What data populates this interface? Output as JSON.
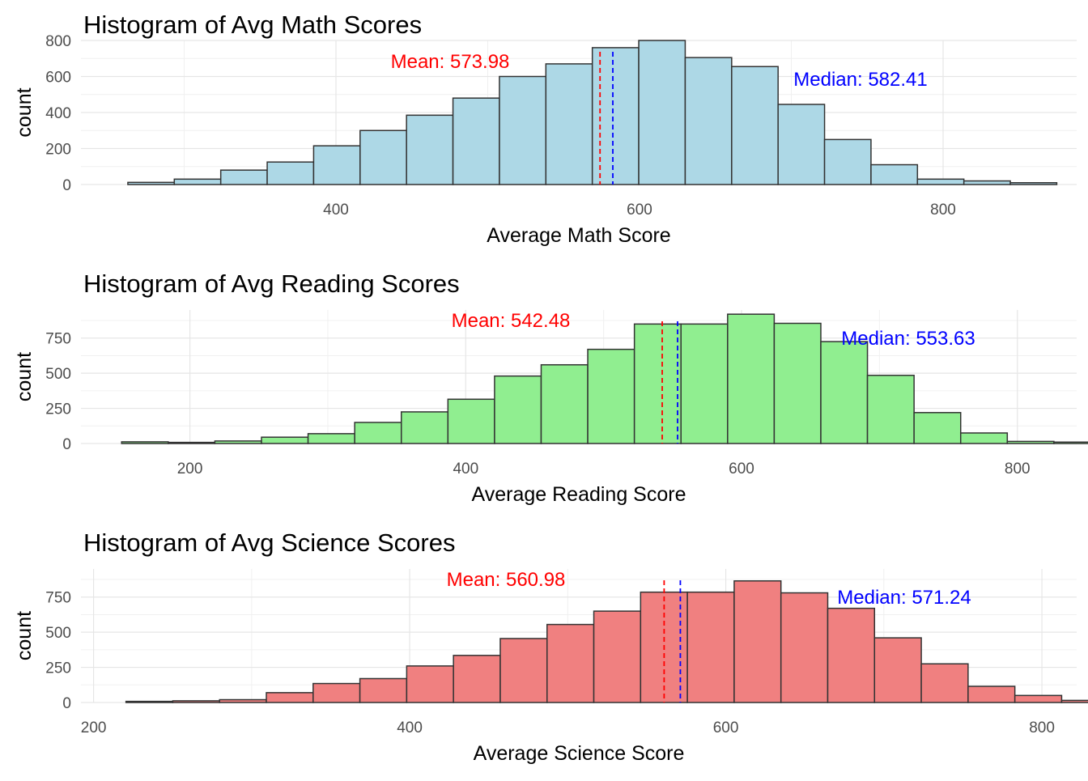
{
  "chart_data": [
    {
      "type": "bar",
      "title": "Histogram of Avg Math Scores",
      "xlabel": "Average Math Score",
      "ylabel": "count",
      "xlim": [
        232,
        888
      ],
      "ylim": [
        0,
        800
      ],
      "x_ticks": [
        400,
        600,
        800
      ],
      "y_ticks": [
        0,
        200,
        400,
        600,
        800
      ],
      "grid": true,
      "bin_start": 262.9,
      "bin_width": 30.6,
      "values": [
        12,
        30,
        80,
        125,
        215,
        300,
        385,
        480,
        600,
        670,
        760,
        800,
        705,
        655,
        445,
        250,
        110,
        30,
        20,
        10
      ],
      "fill_color": "#add8e6",
      "edge_color": "#333333",
      "mean": {
        "value": 573.98,
        "label": "Mean: 573.98",
        "color": "#ff0000"
      },
      "median": {
        "value": 582.41,
        "label": "Median: 582.41",
        "color": "#0000ff"
      }
    },
    {
      "type": "bar",
      "title": "Histogram of Avg Reading Scores",
      "xlabel": "Average Reading Score",
      "ylabel": "count",
      "xlim": [
        121,
        843
      ],
      "ylim": [
        0,
        950
      ],
      "x_ticks": [
        200,
        400,
        600,
        800
      ],
      "y_ticks": [
        0,
        250,
        500,
        750
      ],
      "grid": true,
      "bin_start": 150.5,
      "bin_width": 33.8,
      "values": [
        12,
        8,
        18,
        45,
        70,
        150,
        225,
        315,
        480,
        560,
        670,
        850,
        850,
        920,
        855,
        725,
        485,
        220,
        75,
        15,
        10
      ],
      "fill_color": "#90ee90",
      "edge_color": "#333333",
      "mean": {
        "value": 542.48,
        "label": "Mean: 542.48",
        "color": "#ff0000"
      },
      "median": {
        "value": 553.63,
        "label": "Median: 553.63",
        "color": "#0000ff"
      }
    },
    {
      "type": "bar",
      "title": "Histogram of Avg Science Scores",
      "xlabel": "Average Science Score",
      "ylabel": "count",
      "xlim": [
        192,
        822
      ],
      "ylim": [
        0,
        950
      ],
      "x_ticks": [
        200,
        400,
        600,
        800
      ],
      "y_ticks": [
        0,
        250,
        500,
        750
      ],
      "grid": true,
      "bin_start": 220.5,
      "bin_width": 29.6,
      "values": [
        8,
        12,
        20,
        70,
        135,
        170,
        260,
        335,
        455,
        555,
        650,
        785,
        785,
        865,
        780,
        670,
        460,
        275,
        115,
        50,
        15
      ],
      "fill_color": "#f08080",
      "edge_color": "#333333",
      "mean": {
        "value": 560.98,
        "label": "Mean: 560.98",
        "color": "#ff0000"
      },
      "median": {
        "value": 571.24,
        "label": "Median: 571.24",
        "color": "#0000ff"
      }
    }
  ]
}
